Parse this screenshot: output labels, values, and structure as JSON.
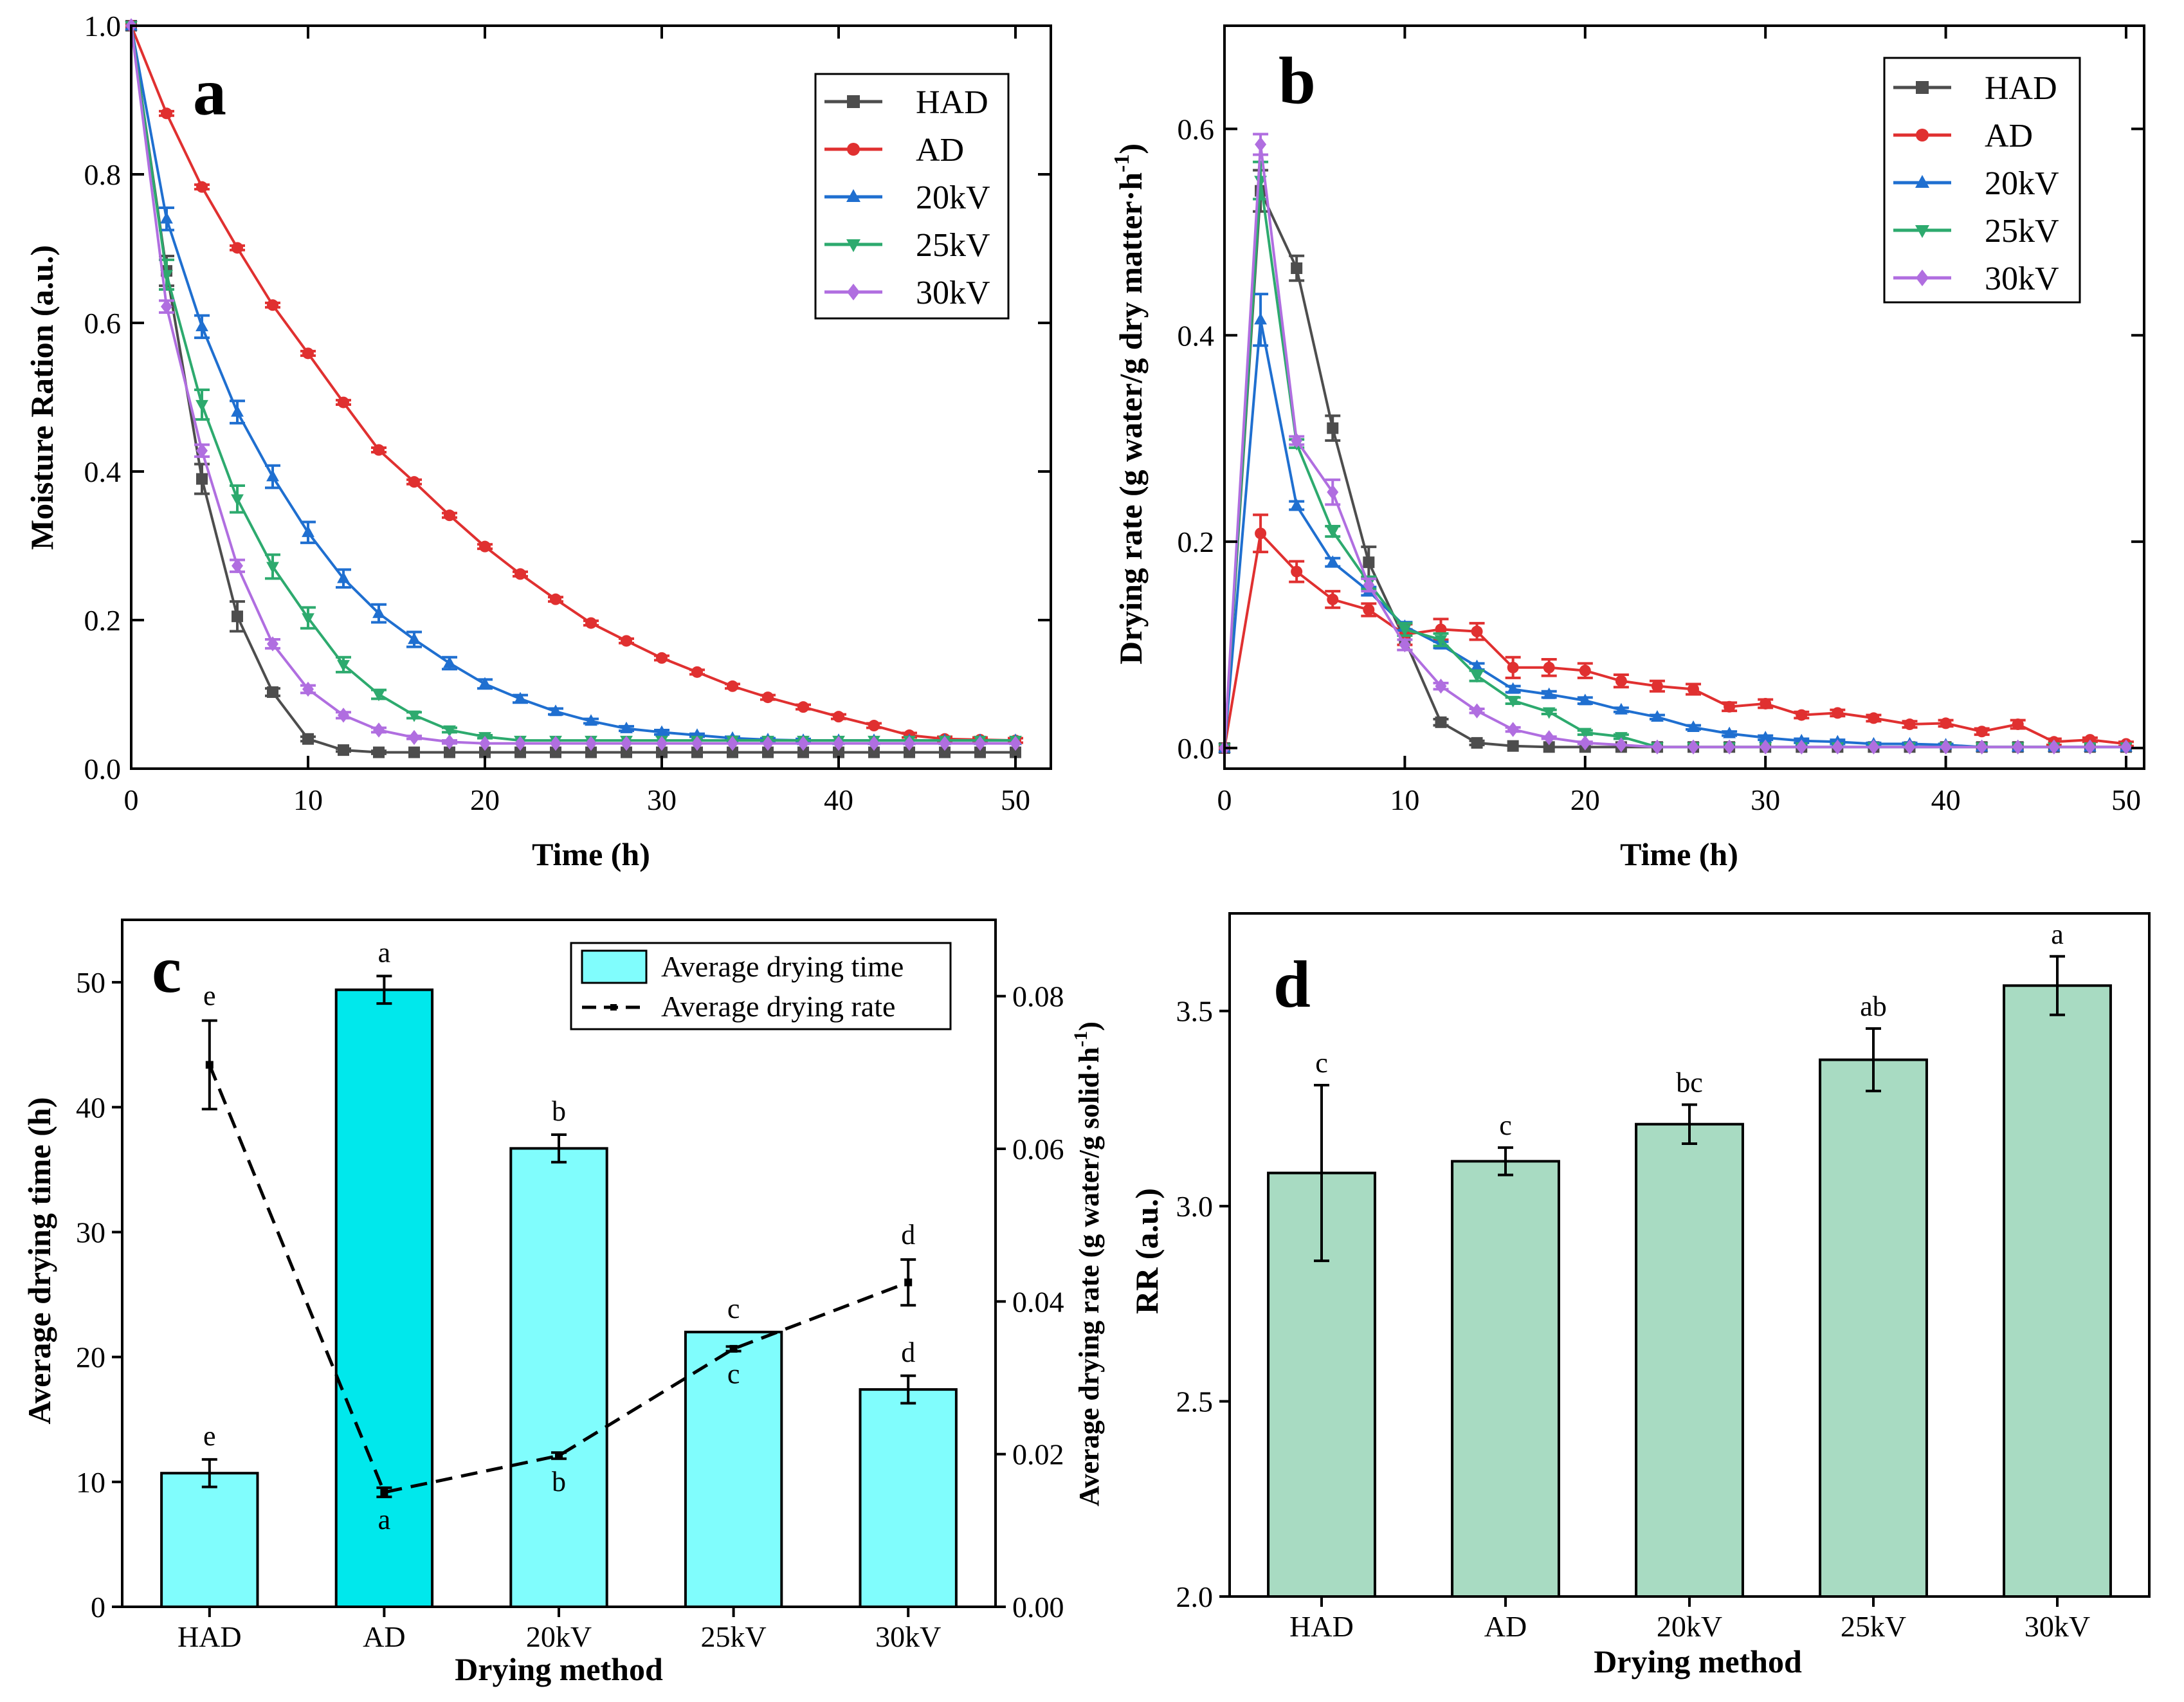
{
  "chart_data": [
    {
      "id": "a",
      "type": "line",
      "panel_label": "a",
      "xlabel": "Time (h)",
      "ylabel": "Moisture Ration (a.u.)",
      "xlim": [
        0,
        52
      ],
      "ylim": [
        0,
        1.0
      ],
      "xticks": [
        0,
        10,
        20,
        30,
        40,
        50
      ],
      "yticks": [
        0.0,
        0.2,
        0.4,
        0.6,
        0.8,
        1.0
      ],
      "xtick_labels": [
        "0",
        "10",
        "20",
        "30",
        "40",
        "50"
      ],
      "ytick_labels": [
        "0.0",
        "0.2",
        "0.4",
        "0.6",
        "0.8",
        "1.0"
      ],
      "legend_position": "top-right",
      "series": [
        {
          "name": "HAD",
          "color": "#4d4d4d",
          "marker": "square",
          "x": [
            0,
            2,
            4,
            6,
            8,
            10,
            12,
            14,
            16,
            18,
            20,
            22,
            24,
            26,
            28,
            30,
            32,
            34,
            36,
            38,
            40,
            42,
            44,
            46,
            48,
            50
          ],
          "y": [
            1.0,
            0.67,
            0.39,
            0.205,
            0.103,
            0.04,
            0.025,
            0.022,
            0.022,
            0.022,
            0.022,
            0.022,
            0.022,
            0.022,
            0.022,
            0.022,
            0.022,
            0.022,
            0.022,
            0.022,
            0.022,
            0.022,
            0.022,
            0.022,
            0.022,
            0.022
          ],
          "err": [
            0,
            0.02,
            0.02,
            0.02,
            0.005,
            0.003,
            0.002,
            0.002,
            0,
            0,
            0,
            0,
            0,
            0,
            0,
            0,
            0,
            0,
            0,
            0,
            0,
            0,
            0,
            0,
            0,
            0
          ]
        },
        {
          "name": "AD",
          "color": "#e03030",
          "marker": "circle",
          "x": [
            0,
            2,
            4,
            6,
            8,
            10,
            12,
            14,
            16,
            18,
            20,
            22,
            24,
            26,
            28,
            30,
            32,
            34,
            36,
            38,
            40,
            42,
            44,
            46,
            48,
            50
          ],
          "y": [
            1.0,
            0.882,
            0.783,
            0.701,
            0.624,
            0.559,
            0.493,
            0.429,
            0.386,
            0.341,
            0.299,
            0.262,
            0.228,
            0.196,
            0.172,
            0.149,
            0.13,
            0.111,
            0.096,
            0.083,
            0.07,
            0.058,
            0.045,
            0.04,
            0.039,
            0.038
          ],
          "err": [
            0,
            0.003,
            0.003,
            0.003,
            0.003,
            0.003,
            0.003,
            0.003,
            0.003,
            0.003,
            0.003,
            0.003,
            0.003,
            0.003,
            0.003,
            0.003,
            0.003,
            0.003,
            0.003,
            0.003,
            0.003,
            0.003,
            0.003,
            0.003,
            0.003,
            0.003
          ]
        },
        {
          "name": "20kV",
          "color": "#1f6fd0",
          "marker": "triangle-up",
          "x": [
            0,
            2,
            4,
            6,
            8,
            10,
            12,
            14,
            16,
            18,
            20,
            22,
            24,
            26,
            28,
            30,
            32,
            34,
            36,
            38,
            40,
            42,
            44,
            46,
            48,
            50
          ],
          "y": [
            1.0,
            0.74,
            0.595,
            0.48,
            0.393,
            0.318,
            0.256,
            0.209,
            0.174,
            0.142,
            0.114,
            0.094,
            0.077,
            0.064,
            0.054,
            0.049,
            0.045,
            0.041,
            0.039,
            0.038,
            0.038,
            0.038,
            0.038,
            0.038,
            0.038,
            0.038
          ],
          "err": [
            0,
            0.015,
            0.015,
            0.015,
            0.015,
            0.014,
            0.012,
            0.012,
            0.01,
            0.008,
            0.006,
            0.005,
            0.004,
            0.003,
            0.003,
            0.003,
            0.002,
            0.002,
            0.002,
            0.002,
            0,
            0,
            0,
            0,
            0,
            0
          ]
        },
        {
          "name": "25kV",
          "color": "#2daa6e",
          "marker": "triangle-down",
          "x": [
            0,
            2,
            4,
            6,
            8,
            10,
            12,
            14,
            16,
            18,
            20,
            22,
            24,
            26,
            28,
            30,
            32,
            34,
            36,
            38,
            40,
            42,
            44,
            46,
            48,
            50
          ],
          "y": [
            1.0,
            0.665,
            0.49,
            0.363,
            0.272,
            0.203,
            0.14,
            0.1,
            0.072,
            0.052,
            0.043,
            0.038,
            0.038,
            0.038,
            0.038,
            0.038,
            0.038,
            0.038,
            0.038,
            0.038,
            0.038,
            0.038,
            0.038,
            0.038,
            0.038,
            0.038
          ],
          "err": [
            0,
            0.02,
            0.02,
            0.018,
            0.016,
            0.014,
            0.01,
            0.006,
            0.004,
            0.003,
            0.002,
            0,
            0,
            0,
            0,
            0,
            0,
            0,
            0,
            0,
            0,
            0,
            0,
            0,
            0,
            0
          ]
        },
        {
          "name": "30kV",
          "color": "#b06ee0",
          "marker": "diamond",
          "x": [
            0,
            2,
            4,
            6,
            8,
            10,
            12,
            14,
            16,
            18,
            20,
            22,
            24,
            26,
            28,
            30,
            32,
            34,
            36,
            38,
            40,
            42,
            44,
            46,
            48,
            50
          ],
          "y": [
            1.0,
            0.622,
            0.428,
            0.273,
            0.168,
            0.107,
            0.072,
            0.052,
            0.042,
            0.036,
            0.034,
            0.034,
            0.034,
            0.034,
            0.034,
            0.034,
            0.034,
            0.034,
            0.034,
            0.034,
            0.034,
            0.034,
            0.034,
            0.034,
            0.034,
            0.034
          ],
          "err": [
            0,
            0.008,
            0.008,
            0.008,
            0.006,
            0.005,
            0.004,
            0.003,
            0.002,
            0.002,
            0,
            0,
            0,
            0,
            0,
            0,
            0,
            0,
            0,
            0,
            0,
            0,
            0,
            0,
            0,
            0
          ]
        }
      ]
    },
    {
      "id": "b",
      "type": "line",
      "panel_label": "b",
      "xlabel": "Time (h)",
      "ylabel": "Drying rate (g water/g dry matter·h",
      "ylabel_sup": "-1",
      "ylabel_end": ")",
      "xlim": [
        0,
        51
      ],
      "ylim": [
        -0.02,
        0.7
      ],
      "xticks": [
        0,
        10,
        20,
        30,
        40,
        50
      ],
      "yticks": [
        0.0,
        0.2,
        0.4,
        0.6
      ],
      "xtick_labels": [
        "0",
        "10",
        "20",
        "30",
        "40",
        "50"
      ],
      "ytick_labels": [
        "0.0",
        "0.2",
        "0.4",
        "0.6"
      ],
      "legend_position": "top-right",
      "series": [
        {
          "name": "HAD",
          "color": "#4d4d4d",
          "marker": "square",
          "x": [
            0,
            2,
            4,
            6,
            8,
            10,
            12,
            14,
            16,
            18,
            20,
            22,
            24,
            26,
            28,
            30,
            32,
            34,
            36,
            38,
            40,
            42,
            44,
            46,
            48,
            50
          ],
          "y": [
            0,
            0.54,
            0.465,
            0.31,
            0.18,
            0.105,
            0.025,
            0.005,
            0.002,
            0.001,
            0.001,
            0.001,
            0.001,
            0.001,
            0.001,
            0.001,
            0.001,
            0.001,
            0.001,
            0.001,
            0.001,
            0.001,
            0.001,
            0.001,
            0.001,
            0.001
          ],
          "err": [
            0,
            0.02,
            0.012,
            0.012,
            0.015,
            0.01,
            0.003,
            0.002,
            0,
            0,
            0,
            0,
            0,
            0,
            0,
            0,
            0,
            0,
            0,
            0,
            0,
            0,
            0,
            0,
            0,
            0
          ]
        },
        {
          "name": "AD",
          "color": "#e03030",
          "marker": "circle",
          "x": [
            0,
            2,
            4,
            6,
            8,
            10,
            12,
            14,
            16,
            18,
            20,
            22,
            24,
            26,
            28,
            30,
            32,
            34,
            36,
            38,
            40,
            42,
            44,
            46,
            48,
            50
          ],
          "y": [
            0,
            0.208,
            0.171,
            0.144,
            0.134,
            0.11,
            0.115,
            0.113,
            0.078,
            0.078,
            0.075,
            0.065,
            0.06,
            0.057,
            0.04,
            0.043,
            0.032,
            0.034,
            0.029,
            0.023,
            0.024,
            0.016,
            0.023,
            0.006,
            0.008,
            0.004
          ],
          "err": [
            0,
            0.018,
            0.01,
            0.008,
            0.006,
            0.01,
            0.01,
            0.008,
            0.01,
            0.008,
            0.007,
            0.006,
            0.005,
            0.005,
            0.004,
            0.004,
            0.003,
            0.003,
            0.003,
            0.003,
            0.003,
            0.003,
            0.004,
            0.003,
            0.002,
            0.002
          ]
        },
        {
          "name": "20kV",
          "color": "#1f6fd0",
          "marker": "triangle-up",
          "x": [
            0,
            2,
            4,
            6,
            8,
            10,
            12,
            14,
            16,
            18,
            20,
            22,
            24,
            26,
            28,
            30,
            32,
            34,
            36,
            38,
            40,
            42,
            44,
            46,
            48,
            50
          ],
          "y": [
            0,
            0.415,
            0.235,
            0.18,
            0.152,
            0.118,
            0.1,
            0.079,
            0.057,
            0.052,
            0.046,
            0.037,
            0.03,
            0.02,
            0.014,
            0.01,
            0.007,
            0.006,
            0.004,
            0.004,
            0.003,
            0.001,
            0.001,
            0.001,
            0.001,
            0.001
          ],
          "err": [
            0,
            0.025,
            0.004,
            0.004,
            0.004,
            0.004,
            0.003,
            0.003,
            0.003,
            0.003,
            0.003,
            0.002,
            0.002,
            0.002,
            0.002,
            0.002,
            0.002,
            0.002,
            0.001,
            0.001,
            0.001,
            0,
            0,
            0,
            0,
            0
          ]
        },
        {
          "name": "25kV",
          "color": "#2daa6e",
          "marker": "triangle-down",
          "x": [
            0,
            2,
            4,
            6,
            8,
            10,
            12,
            14,
            16,
            18,
            20,
            22,
            24,
            26,
            28,
            30,
            32,
            34,
            36,
            38,
            40,
            42,
            44,
            46,
            48,
            50
          ],
          "y": [
            0,
            0.55,
            0.295,
            0.21,
            0.16,
            0.115,
            0.105,
            0.07,
            0.046,
            0.035,
            0.015,
            0.011,
            0.001,
            0.001,
            0.001,
            0.001,
            0.001,
            0.001,
            0.001,
            0.001,
            0.001,
            0.001,
            0.001,
            0.001,
            0.001,
            0.001
          ],
          "err": [
            0,
            0.018,
            0.004,
            0.005,
            0.006,
            0.006,
            0.006,
            0.005,
            0.003,
            0.002,
            0.002,
            0.002,
            0,
            0,
            0,
            0,
            0,
            0,
            0,
            0,
            0,
            0,
            0,
            0,
            0,
            0
          ]
        },
        {
          "name": "30kV",
          "color": "#b06ee0",
          "marker": "diamond",
          "x": [
            0,
            2,
            4,
            6,
            8,
            10,
            12,
            14,
            16,
            18,
            20,
            22,
            24,
            26,
            28,
            30,
            32,
            34,
            36,
            38,
            40,
            42,
            44,
            46,
            48,
            50
          ],
          "y": [
            0,
            0.585,
            0.298,
            0.248,
            0.158,
            0.1,
            0.06,
            0.036,
            0.018,
            0.01,
            0.005,
            0.003,
            0.001,
            0.001,
            0.001,
            0.001,
            0.001,
            0.001,
            0.001,
            0.001,
            0.001,
            0.001,
            0.001,
            0.001,
            0.001,
            0.001
          ],
          "err": [
            0,
            0.01,
            0.004,
            0.012,
            0.006,
            0.005,
            0.003,
            0.002,
            0.002,
            0.001,
            0.001,
            0,
            0,
            0,
            0,
            0,
            0,
            0,
            0,
            0,
            0,
            0,
            0,
            0,
            0,
            0
          ]
        }
      ]
    },
    {
      "id": "c",
      "type": "bar",
      "panel_label": "c",
      "xlabel": "Drying method",
      "ylabel": "Average drying time (h)",
      "y2label": "Average drying rate (g water/g solid·h",
      "y2label_sup": "-1",
      "y2label_end": ")",
      "categories": [
        "HAD",
        "AD",
        "20kV",
        "25kV",
        "30kV"
      ],
      "ylim": [
        0,
        55
      ],
      "yticks": [
        0,
        10,
        20,
        30,
        40,
        50
      ],
      "ytick_labels": [
        "0",
        "10",
        "20",
        "30",
        "40",
        "50"
      ],
      "y2lim": [
        0,
        0.09
      ],
      "y2ticks": [
        0.0,
        0.02,
        0.04,
        0.06,
        0.08
      ],
      "y2tick_labels": [
        "0.00",
        "0.02",
        "0.04",
        "0.06",
        "0.08"
      ],
      "legend_position": "top-right",
      "bar_series": {
        "name": "Average drying time",
        "values": [
          10.7,
          49.4,
          36.7,
          22.0,
          17.4
        ],
        "err": [
          1.1,
          1.1,
          1.1,
          0,
          1.1
        ],
        "letters": [
          "e",
          "a",
          "b",
          "c",
          "d"
        ],
        "colors": [
          "#80fdfd",
          "#00e8ec",
          "#80fdfd",
          "#80fdfd",
          "#80fdfd"
        ]
      },
      "line_series": {
        "name": "Average drying rate",
        "values": [
          0.071,
          0.015,
          0.0198,
          0.0338,
          0.0425
        ],
        "err": [
          0.0058,
          0.0006,
          0.0004,
          0.0003,
          0.003
        ],
        "letters": [
          "e",
          "a",
          "b",
          "c",
          "d"
        ]
      }
    },
    {
      "id": "d",
      "type": "bar",
      "panel_label": "d",
      "xlabel": "Drying method",
      "ylabel": "RR (a.u.)",
      "categories": [
        "HAD",
        "AD",
        "20kV",
        "25kV",
        "30kV"
      ],
      "ylim": [
        2.0,
        3.75
      ],
      "yticks": [
        2.0,
        2.5,
        3.0,
        3.5
      ],
      "ytick_labels": [
        "2.0",
        "2.5",
        "3.0",
        "3.5"
      ],
      "values": [
        3.085,
        3.115,
        3.21,
        3.375,
        3.565
      ],
      "err": [
        0.225,
        0.035,
        0.05,
        0.08,
        0.075
      ],
      "letters": [
        "c",
        "c",
        "bc",
        "ab",
        "a"
      ],
      "color": "#a8dbc2"
    }
  ]
}
